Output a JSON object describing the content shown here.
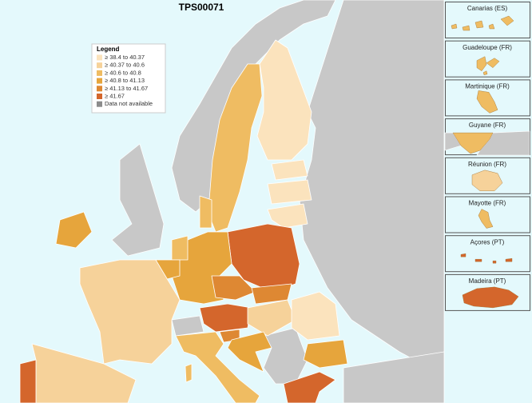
{
  "title": "TPS00071",
  "legend": {
    "title": "Legend",
    "items": [
      {
        "label": "≥ 38.4 to 40.37",
        "color": "#fbe3bd"
      },
      {
        "label": "≥ 40.37 to 40.6",
        "color": "#f6d29a"
      },
      {
        "label": "≥ 40.6 to 40.8",
        "color": "#efbc62"
      },
      {
        "label": "≥ 40.8 to 41.13",
        "color": "#e6a53c"
      },
      {
        "label": "≥ 41.13 to 41.67",
        "color": "#de8833"
      },
      {
        "label": "≥ 41.67",
        "color": "#d4662c"
      },
      {
        "label": "Data not available",
        "color": "#8c8c8c"
      }
    ]
  },
  "insets": [
    {
      "label": "Canarias (ES)"
    },
    {
      "label": "Guadeloupe (FR)"
    },
    {
      "label": "Martinique (FR)"
    },
    {
      "label": "Guyane (FR)"
    },
    {
      "label": "Réunion (FR)"
    },
    {
      "label": "Mayotte (FR)"
    },
    {
      "label": "Açores (PT)"
    },
    {
      "label": "Madeira (PT)"
    }
  ]
}
